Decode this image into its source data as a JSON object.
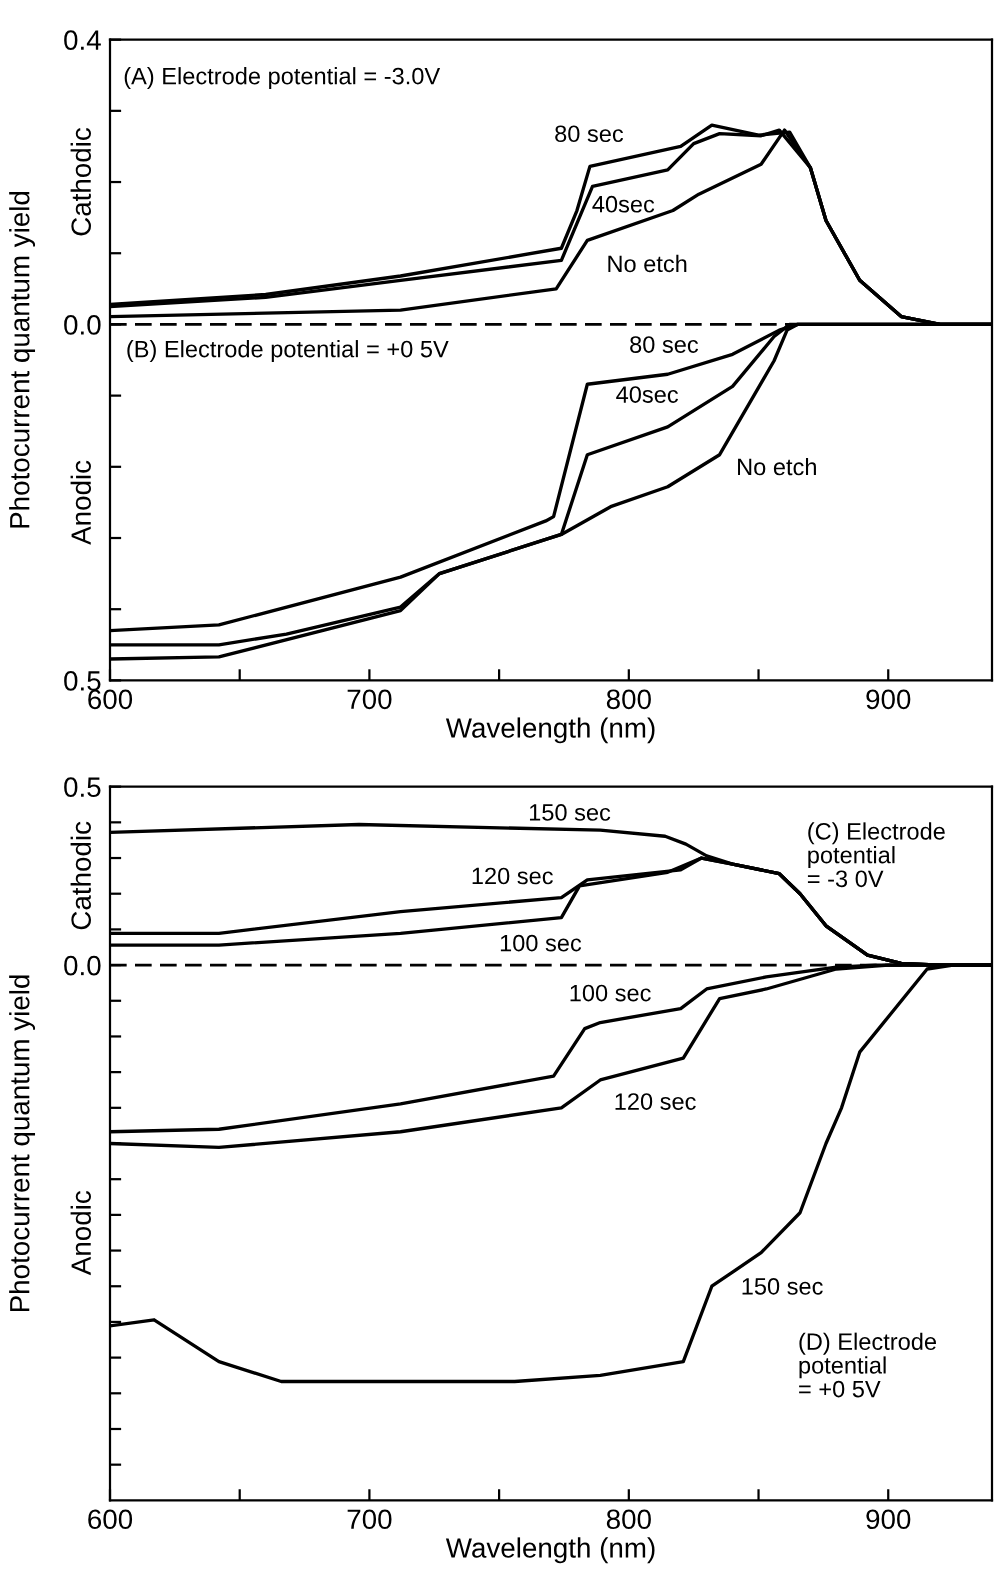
{
  "chart_data": [
    {
      "type": "line",
      "title": "(A) Electrode potential = -3.0V",
      "xlabel": "Wavelength (nm)",
      "ylabel": "Photocurrent quantum yield",
      "xlim": [
        600,
        940
      ],
      "xticks": [
        600,
        {
          "value": 650,
          "label": null
        },
        700,
        {
          "value": 750,
          "label": null
        },
        800,
        {
          "value": 850,
          "label": null
        },
        900
      ],
      "ylim": [
        -0.5,
        0.4
      ],
      "yticks": [
        {
          "value": -0.5,
          "label": "0.5"
        },
        {
          "value": -0.4,
          "label": null
        },
        {
          "value": -0.3,
          "label": null
        },
        {
          "value": -0.2,
          "label": null
        },
        {
          "value": -0.1,
          "label": null
        },
        {
          "value": 0,
          "label": "0.0"
        },
        {
          "value": 0.1,
          "label": null
        },
        {
          "value": 0.2,
          "label": null
        },
        {
          "value": 0.3,
          "label": null
        },
        0.4
      ],
      "grid": false,
      "legend": false,
      "marker": "none",
      "line_style": "solid",
      "ref_lines": [
        {
          "axis": "y",
          "value": 0,
          "label": null,
          "color": "#000000",
          "line_style": "dashed"
        }
      ],
      "annotations": [
        "Cathodic",
        "Anodic",
        "80 sec",
        "40sec",
        "No etch",
        "(B) Electrode potential = +0 5V",
        "80 sec",
        "40sec",
        "No etch"
      ],
      "series": [
        {
          "color": "#000000",
          "x": [
            600,
            660,
            712,
            774,
            780,
            785,
            820,
            832,
            850,
            862,
            870,
            876,
            889,
            905,
            920,
            940
          ],
          "values": [
            0.028,
            0.042,
            0.068,
            0.107,
            0.16,
            0.222,
            0.25,
            0.28,
            0.266,
            0.27,
            0.22,
            0.146,
            0.062,
            0.011,
            0.0,
            0.0
          ]
        },
        {
          "color": "#000000",
          "x": [
            600,
            660,
            712,
            774,
            786,
            815,
            825,
            835,
            851,
            858,
            870,
            876,
            889,
            905,
            920,
            940
          ],
          "values": [
            0.025,
            0.038,
            0.062,
            0.09,
            0.194,
            0.217,
            0.254,
            0.268,
            0.265,
            0.273,
            0.22,
            0.146,
            0.062,
            0.011,
            0.0,
            0.0
          ]
        },
        {
          "color": "#000000",
          "x": [
            600,
            712,
            772,
            784,
            817,
            827,
            851,
            860,
            870,
            876,
            889,
            905,
            920,
            940
          ],
          "values": [
            0.011,
            0.02,
            0.05,
            0.118,
            0.16,
            0.183,
            0.225,
            0.273,
            0.22,
            0.146,
            0.062,
            0.011,
            0.0,
            0.0
          ]
        },
        {
          "color": "#000000",
          "x": [
            600,
            642,
            712,
            768,
            771,
            784,
            815,
            840,
            858,
            865,
            940
          ],
          "values": [
            -0.43,
            -0.422,
            -0.355,
            -0.276,
            -0.27,
            -0.084,
            -0.07,
            -0.042,
            -0.008,
            0.0,
            0.0
          ]
        },
        {
          "color": "#000000",
          "x": [
            600,
            642,
            668,
            712,
            727,
            774,
            784,
            815,
            840,
            856,
            862,
            940
          ],
          "values": [
            -0.45,
            -0.45,
            -0.435,
            -0.397,
            -0.35,
            -0.295,
            -0.183,
            -0.144,
            -0.087,
            -0.017,
            0.0,
            0.0
          ]
        },
        {
          "color": "#000000",
          "x": [
            600,
            642,
            712,
            727,
            774,
            793,
            815,
            835,
            856,
            861,
            865,
            940
          ],
          "values": [
            -0.47,
            -0.467,
            -0.402,
            -0.35,
            -0.295,
            -0.256,
            -0.228,
            -0.183,
            -0.051,
            -0.008,
            0.0,
            0.0
          ]
        }
      ]
    },
    {
      "type": "line",
      "title": "(C) Electrode\npotential\n= -3 0V",
      "subtitle": "(D) Electrode\npotential\n= +0 5V",
      "xlabel": "Wavelength (nm)",
      "ylabel": "Photocurrent quantum yield",
      "xlim": [
        600,
        940
      ],
      "xticks": [
        600,
        {
          "value": 650,
          "label": null
        },
        700,
        {
          "value": 750,
          "label": null
        },
        800,
        {
          "value": 850,
          "label": null
        },
        900
      ],
      "ylim": [
        -1.5,
        0.5
      ],
      "yticks": [
        {
          "value": -1.4,
          "label": null
        },
        {
          "value": -1.3,
          "label": null
        },
        {
          "value": -1.2,
          "label": null
        },
        {
          "value": -1.1,
          "label": null
        },
        {
          "value": -1.0,
          "label": null
        },
        {
          "value": -0.9,
          "label": null
        },
        {
          "value": -0.8,
          "label": null
        },
        {
          "value": -0.7,
          "label": null
        },
        {
          "value": -0.6,
          "label": null
        },
        {
          "value": -0.5,
          "label": null
        },
        {
          "value": -0.4,
          "label": null
        },
        {
          "value": -0.3,
          "label": null
        },
        {
          "value": -0.2,
          "label": null
        },
        {
          "value": -0.1,
          "label": null
        },
        {
          "value": 0,
          "label": "0.0"
        },
        {
          "value": 0.1,
          "label": null
        },
        {
          "value": 0.2,
          "label": null
        },
        {
          "value": 0.3,
          "label": null
        },
        {
          "value": 0.4,
          "label": null
        },
        0.5
      ],
      "grid": false,
      "legend": false,
      "marker": "none",
      "line_style": "solid",
      "ref_lines": [
        {
          "axis": "y",
          "value": 0,
          "label": null,
          "color": "#000000",
          "line_style": "dashed"
        }
      ],
      "annotations": [
        "Cathodic",
        "Anodic",
        "150 sec",
        "120 sec",
        "100 sec",
        "100 sec",
        "120 sec",
        "150 sec"
      ],
      "series": [
        {
          "color": "#000000",
          "x": [
            600,
            696,
            789,
            814,
            822,
            830,
            840,
            858,
            866,
            876,
            892,
            905,
            920,
            940
          ],
          "values": [
            0.372,
            0.394,
            0.378,
            0.361,
            0.339,
            0.306,
            0.283,
            0.256,
            0.2,
            0.11,
            0.028,
            0.005,
            0.0,
            0.0
          ]
        },
        {
          "color": "#000000",
          "x": [
            600,
            642,
            712,
            774,
            784,
            820,
            828,
            840,
            858,
            866,
            876,
            892,
            905,
            920,
            940
          ],
          "values": [
            0.089,
            0.089,
            0.15,
            0.189,
            0.239,
            0.267,
            0.3,
            0.283,
            0.256,
            0.2,
            0.11,
            0.028,
            0.005,
            0.0,
            0.0
          ]
        },
        {
          "color": "#000000",
          "x": [
            600,
            642,
            712,
            774,
            781,
            815,
            828,
            840,
            858,
            866,
            876,
            892,
            905,
            920,
            940
          ],
          "values": [
            0.056,
            0.056,
            0.089,
            0.133,
            0.222,
            0.26,
            0.3,
            0.283,
            0.256,
            0.2,
            0.11,
            0.028,
            0.005,
            0.0,
            0.0
          ]
        },
        {
          "color": "#000000",
          "x": [
            600,
            642,
            712,
            771,
            783,
            789,
            820,
            830,
            853,
            880,
            895,
            940
          ],
          "values": [
            -0.467,
            -0.46,
            -0.389,
            -0.311,
            -0.178,
            -0.161,
            -0.122,
            -0.067,
            -0.033,
            -0.006,
            0.0,
            0.0
          ]
        },
        {
          "color": "#000000",
          "x": [
            600,
            642,
            712,
            774,
            789,
            821,
            827,
            835,
            853,
            880,
            900,
            940
          ],
          "values": [
            -0.5,
            -0.511,
            -0.467,
            -0.4,
            -0.322,
            -0.261,
            -0.189,
            -0.094,
            -0.067,
            -0.011,
            0.0,
            0.0
          ]
        },
        {
          "color": "#000000",
          "x": [
            600,
            617,
            642,
            666,
            756,
            789,
            821,
            832,
            851,
            866,
            876,
            882,
            889,
            915,
            925,
            940
          ],
          "values": [
            -1.011,
            -0.994,
            -1.111,
            -1.167,
            -1.167,
            -1.15,
            -1.111,
            -0.9,
            -0.806,
            -0.694,
            -0.5,
            -0.4,
            -0.244,
            -0.011,
            0.0,
            0.0
          ]
        }
      ]
    }
  ]
}
